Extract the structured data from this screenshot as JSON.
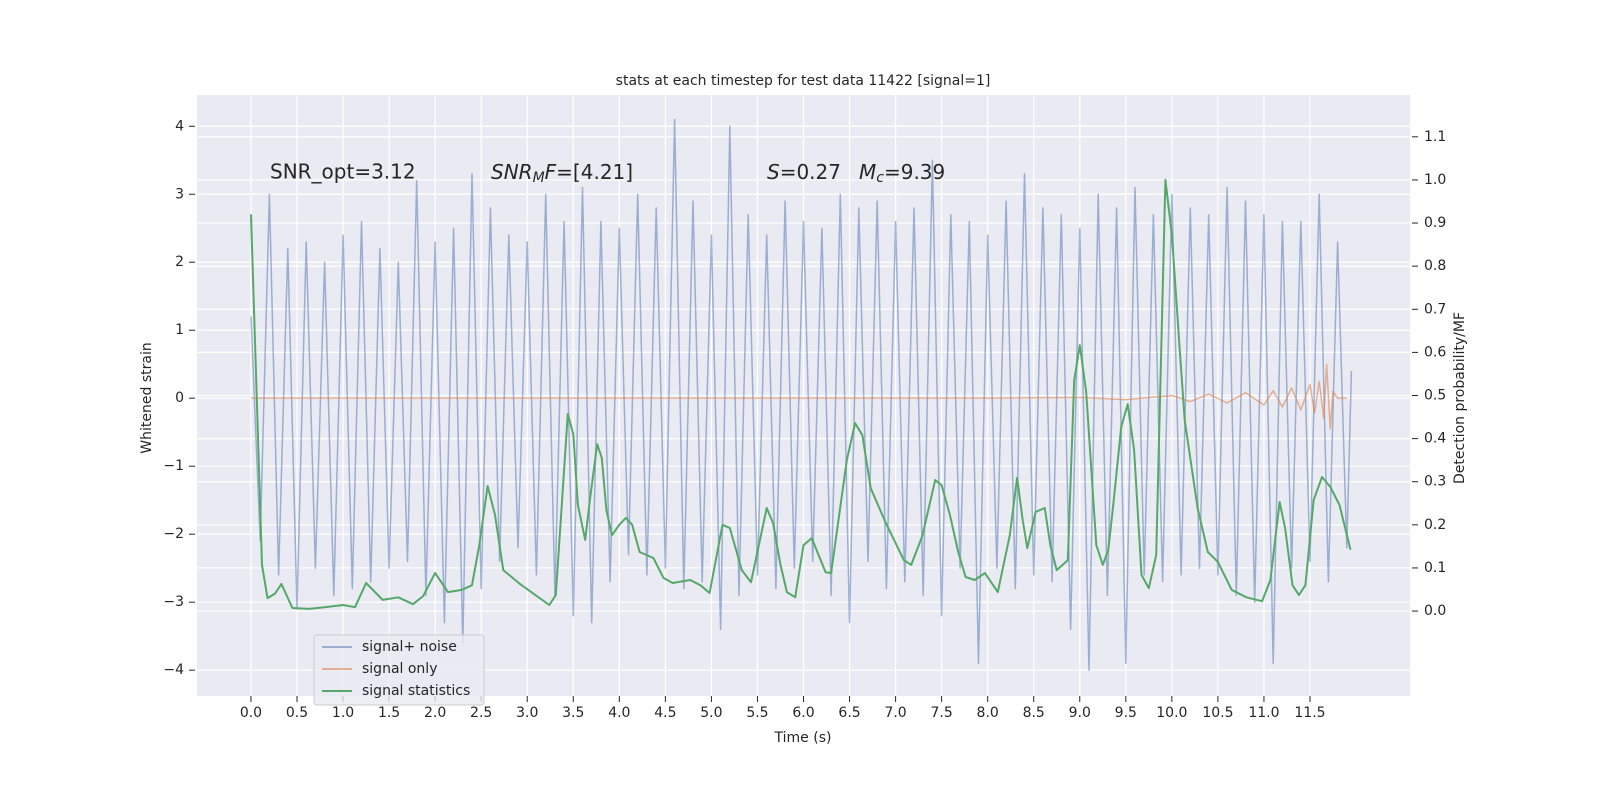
{
  "chart_data": {
    "type": "line",
    "title": "stats at each timestep for test data 11422 [signal=1]",
    "x_label": "Time (s)",
    "y_label": "Whitened strain",
    "y2_label": "Detection probability/MF",
    "xlim": [
      -0.586,
      12.586
    ],
    "ylim": [
      -4.38,
      4.46
    ],
    "y2lim": [
      -0.197,
      1.197
    ],
    "xticks": [
      {
        "value": 0,
        "label": "0.0"
      },
      0.5,
      {
        "value": 1,
        "label": "1.0"
      },
      1.5,
      {
        "value": 2,
        "label": "2.0"
      },
      2.5,
      {
        "value": 3,
        "label": "3.0"
      },
      3.5,
      {
        "value": 4,
        "label": "4.0"
      },
      4.5,
      {
        "value": 5,
        "label": "5.0"
      },
      5.5,
      {
        "value": 6,
        "label": "6.0"
      },
      6.5,
      {
        "value": 7,
        "label": "7.0"
      },
      7.5,
      {
        "value": 8,
        "label": "8.0"
      },
      8.5,
      {
        "value": 9,
        "label": "9.0"
      },
      9.5,
      {
        "value": 10,
        "label": "10.0"
      },
      10.5,
      {
        "value": 11,
        "label": "11.0"
      },
      11.5
    ],
    "yticks": [
      {
        "value": -4,
        "label": "−4"
      },
      {
        "value": -3,
        "label": "−3"
      },
      {
        "value": -2,
        "label": "−2"
      },
      {
        "value": -1,
        "label": "−1"
      },
      0,
      1,
      2,
      3,
      4
    ],
    "y2ticks": [
      {
        "value": 0,
        "label": "0.0"
      },
      0.1,
      0.2,
      0.3,
      0.4,
      0.5,
      0.6,
      0.7,
      0.8,
      0.9,
      {
        "value": 1,
        "label": "1.0"
      },
      1.1
    ],
    "grid": true,
    "legend": "lower left",
    "annotations": [
      {
        "text": "SNR_opt=3.12"
      },
      {
        "parts": [
          {
            "text": "SNR",
            "style": "italic"
          },
          {
            "text": "M",
            "style": "sub"
          },
          {
            "text": "F",
            "style": "italic"
          },
          {
            "text": "=[4.21]"
          }
        ]
      },
      {
        "parts": [
          {
            "text": "S",
            "style": "italic"
          },
          {
            "text": "=0.27"
          }
        ]
      },
      {
        "parts": [
          {
            "text": "M",
            "style": "italic"
          },
          {
            "text": "c",
            "style": "sub"
          },
          {
            "text": "=9.39"
          }
        ]
      }
    ],
    "series": [
      {
        "name": "signal+ noise",
        "color": "#4c72b0",
        "opacity": 0.5,
        "x": [
          0,
          0.1,
          0.2,
          0.3,
          0.4,
          0.5,
          0.6,
          0.7,
          0.8,
          0.9,
          1,
          1.1,
          1.2,
          1.3,
          1.4,
          1.5,
          1.6,
          1.7,
          1.8,
          1.9,
          2,
          2.1,
          2.2,
          2.3,
          2.4,
          2.5,
          2.6,
          2.7,
          2.8,
          2.9,
          3,
          3.1,
          3.2,
          3.3,
          3.4,
          3.5,
          3.6,
          3.7,
          3.8,
          3.9,
          4,
          4.1,
          4.2,
          4.3,
          4.4,
          4.5,
          4.6,
          4.7,
          4.8,
          4.9,
          5,
          5.1,
          5.2,
          5.3,
          5.4,
          5.5,
          5.6,
          5.7,
          5.8,
          5.9,
          6,
          6.1,
          6.2,
          6.3,
          6.4,
          6.5,
          6.6,
          6.7,
          6.8,
          6.9,
          7,
          7.1,
          7.2,
          7.3,
          7.4,
          7.5,
          7.6,
          7.7,
          7.8,
          7.9,
          8,
          8.1,
          8.2,
          8.3,
          8.4,
          8.5,
          8.6,
          8.7,
          8.8,
          8.9,
          9,
          9.1,
          9.2,
          9.3,
          9.4,
          9.5,
          9.6,
          9.7,
          9.8,
          9.9,
          10,
          10.1,
          10.2,
          10.3,
          10.4,
          10.5,
          10.6,
          10.7,
          10.8,
          10.9,
          11,
          11.1,
          11.2,
          11.3,
          11.4,
          11.5,
          11.6,
          11.7,
          11.8,
          11.9,
          11.95
        ],
        "values": [
          1.2,
          -2.1,
          3.0,
          -2.6,
          2.2,
          -3.1,
          2.3,
          -2.5,
          2.0,
          -2.9,
          2.4,
          -2.8,
          2.6,
          -2.7,
          2.2,
          -2.5,
          2.0,
          -2.4,
          3.2,
          -2.9,
          2.3,
          -3.3,
          2.5,
          -3.6,
          3.3,
          -2.8,
          2.8,
          -2.4,
          2.4,
          -2.2,
          2.3,
          -2.6,
          3.0,
          -2.9,
          2.6,
          -3.2,
          3.1,
          -3.3,
          2.6,
          -2.7,
          2.5,
          -2.3,
          3.0,
          -2.6,
          2.8,
          -2.5,
          4.1,
          -2.8,
          2.9,
          -2.7,
          2.4,
          -3.4,
          4.0,
          -2.9,
          2.7,
          -2.6,
          2.4,
          -2.8,
          2.9,
          -2.5,
          2.6,
          -2.4,
          2.5,
          -2.9,
          3.0,
          -3.3,
          2.8,
          -2.4,
          2.9,
          -2.8,
          2.6,
          -2.7,
          2.8,
          -2.9,
          3.5,
          -3.2,
          2.7,
          -2.5,
          2.6,
          -3.9,
          2.4,
          -2.5,
          2.9,
          -2.8,
          3.3,
          -2.6,
          2.8,
          -2.7,
          2.7,
          -3.4,
          2.5,
          -4.0,
          3.0,
          -2.9,
          2.8,
          -3.9,
          3.1,
          -2.6,
          2.7,
          -2.7,
          3.0,
          -2.6,
          2.8,
          -2.5,
          2.7,
          -2.6,
          3.1,
          -2.9,
          2.9,
          -3.0,
          2.7,
          -3.9,
          2.6,
          -2.5,
          2.6,
          -2.4,
          3.0,
          -2.7,
          2.3,
          -2.2,
          0.4
        ]
      },
      {
        "name": "signal only",
        "color": "#dd8452",
        "opacity": 0.6,
        "x": [
          0,
          2,
          4,
          6,
          8,
          9,
          9.5,
          10,
          10.2,
          10.4,
          10.6,
          10.8,
          11,
          11.1,
          11.2,
          11.3,
          11.4,
          11.5,
          11.55,
          11.6,
          11.65,
          11.68,
          11.72,
          11.75,
          11.8,
          11.9
        ],
        "values": [
          0,
          0,
          0,
          0,
          0,
          0.01,
          -0.02,
          0.04,
          -0.05,
          0.06,
          -0.07,
          0.08,
          -0.1,
          0.11,
          -0.13,
          0.15,
          -0.17,
          0.2,
          -0.22,
          0.25,
          -0.3,
          0.5,
          -0.45,
          0.1,
          0,
          0
        ]
      },
      {
        "name": "signal statistics",
        "color": "#55a868",
        "axis": "y2",
        "opacity": 1,
        "x": [
          0,
          0.12,
          0.18,
          0.26,
          0.33,
          0.45,
          0.63,
          0.8,
          1.0,
          1.13,
          1.25,
          1.43,
          1.6,
          1.76,
          1.87,
          2.0,
          2.14,
          2.29,
          2.4,
          2.48,
          2.57,
          2.65,
          2.74,
          2.92,
          3.24,
          3.31,
          3.44,
          3.5,
          3.55,
          3.63,
          3.68,
          3.76,
          3.81,
          3.86,
          3.92,
          4.0,
          4.07,
          4.14,
          4.22,
          4.37,
          4.48,
          4.58,
          4.77,
          4.88,
          4.98,
          5.12,
          5.2,
          5.33,
          5.43,
          5.6,
          5.67,
          5.75,
          5.82,
          5.91,
          6.0,
          6.09,
          6.24,
          6.3,
          6.47,
          6.56,
          6.64,
          6.73,
          6.89,
          7.09,
          7.17,
          7.29,
          7.43,
          7.5,
          7.59,
          7.68,
          7.76,
          7.86,
          7.97,
          8.11,
          8.24,
          8.32,
          8.38,
          8.43,
          8.52,
          8.62,
          8.68,
          8.75,
          8.87,
          8.94,
          9.0,
          9.07,
          9.18,
          9.25,
          9.31,
          9.37,
          9.45,
          9.52,
          9.59,
          9.67,
          9.75,
          9.83,
          9.93,
          10.0,
          10.09,
          10.14,
          10.28,
          10.39,
          10.5,
          10.65,
          10.81,
          10.98,
          11.07,
          11.17,
          11.23,
          11.31,
          11.38,
          11.45,
          11.54,
          11.63,
          11.72,
          11.82,
          11.94
        ],
        "values": [
          0.92,
          0.107,
          0.03,
          0.04,
          0.063,
          0.007,
          0.005,
          0.009,
          0.014,
          0.009,
          0.065,
          0.026,
          0.032,
          0.016,
          0.035,
          0.088,
          0.044,
          0.049,
          0.06,
          0.153,
          0.29,
          0.223,
          0.095,
          0.063,
          0.014,
          0.037,
          0.457,
          0.41,
          0.246,
          0.165,
          0.258,
          0.387,
          0.355,
          0.234,
          0.176,
          0.2,
          0.216,
          0.2,
          0.137,
          0.123,
          0.077,
          0.065,
          0.072,
          0.06,
          0.042,
          0.2,
          0.193,
          0.095,
          0.067,
          0.239,
          0.204,
          0.107,
          0.044,
          0.032,
          0.153,
          0.169,
          0.09,
          0.088,
          0.35,
          0.436,
          0.408,
          0.285,
          0.206,
          0.118,
          0.107,
          0.174,
          0.304,
          0.292,
          0.223,
          0.137,
          0.079,
          0.072,
          0.088,
          0.044,
          0.176,
          0.309,
          0.211,
          0.146,
          0.23,
          0.239,
          0.153,
          0.095,
          0.118,
          0.536,
          0.617,
          0.508,
          0.153,
          0.107,
          0.142,
          0.258,
          0.427,
          0.48,
          0.374,
          0.084,
          0.053,
          0.13,
          1.0,
          0.872,
          0.594,
          0.443,
          0.239,
          0.137,
          0.114,
          0.049,
          0.032,
          0.023,
          0.072,
          0.253,
          0.193,
          0.06,
          0.037,
          0.06,
          0.258,
          0.311,
          0.288,
          0.246,
          0.142
        ]
      }
    ]
  }
}
